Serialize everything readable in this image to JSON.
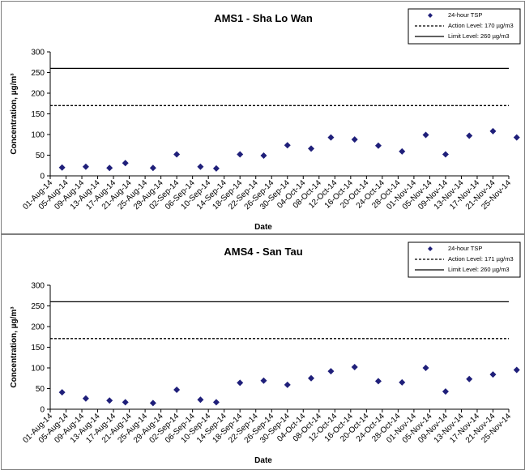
{
  "chart_data": [
    {
      "type": "scatter",
      "title": "AMS1 - Sha Lo Wan",
      "xlabel": "Date",
      "ylabel": "Concentration, µg/m³",
      "ylim": [
        0,
        300
      ],
      "yticks": [
        "0",
        "50",
        "100",
        "150",
        "200",
        "250",
        "300"
      ],
      "categories": [
        "01-Aug-14",
        "05-Aug-14",
        "09-Aug-14",
        "13-Aug-14",
        "17-Aug-14",
        "21-Aug-14",
        "25-Aug-14",
        "29-Aug-14",
        "02-Sep-14",
        "06-Sep-14",
        "10-Sep-14",
        "14-Sep-14",
        "18-Sep-14",
        "22-Sep-14",
        "26-Sep-14",
        "30-Sep-14",
        "04-Oct-14",
        "08-Oct-14",
        "12-Oct-14",
        "16-Oct-14",
        "20-Oct-14",
        "24-Oct-14",
        "28-Oct-14",
        "01-Nov-14",
        "05-Nov-14",
        "09-Nov-14",
        "13-Nov-14",
        "17-Nov-14",
        "21-Nov-14",
        "25-Nov-14"
      ],
      "series": [
        {
          "name": "24-hour TSP",
          "color": "#1f1f7a",
          "marker": "diamond",
          "x": [
            "04-Aug-14",
            "10-Aug-14",
            "16-Aug-14",
            "20-Aug-14",
            "27-Aug-14",
            "02-Sep-14",
            "08-Sep-14",
            "12-Sep-14",
            "18-Sep-14",
            "24-Sep-14",
            "30-Sep-14",
            "06-Oct-14",
            "11-Oct-14",
            "17-Oct-14",
            "23-Oct-14",
            "29-Oct-14",
            "04-Nov-14",
            "09-Nov-14",
            "15-Nov-14",
            "21-Nov-14",
            "27-Nov-14"
          ],
          "values": [
            20,
            22,
            19,
            31,
            19,
            52,
            22,
            18,
            52,
            49,
            74,
            66,
            93,
            88,
            73,
            59,
            99,
            52,
            97,
            108,
            93
          ]
        }
      ],
      "reference_lines": [
        {
          "name": "Action Level: 170 µg/m3",
          "value": 170,
          "style": "dashed"
        },
        {
          "name": "Limit Level: 260 µg/m3",
          "value": 260,
          "style": "solid"
        }
      ],
      "legend_position": "top-right",
      "grid": false
    },
    {
      "type": "scatter",
      "title": "AMS4 - San Tau",
      "xlabel": "Date",
      "ylabel": "Concentration, µg/m³",
      "ylim": [
        0,
        300
      ],
      "yticks": [
        "0",
        "50",
        "100",
        "150",
        "200",
        "250",
        "300"
      ],
      "categories": [
        "01-Aug-14",
        "05-Aug-14",
        "09-Aug-14",
        "13-Aug-14",
        "17-Aug-14",
        "21-Aug-14",
        "25-Aug-14",
        "29-Aug-14",
        "02-Sep-14",
        "06-Sep-14",
        "10-Sep-14",
        "14-Sep-14",
        "18-Sep-14",
        "22-Sep-14",
        "26-Sep-14",
        "30-Sep-14",
        "04-Oct-14",
        "08-Oct-14",
        "12-Oct-14",
        "16-Oct-14",
        "20-Oct-14",
        "24-Oct-14",
        "28-Oct-14",
        "01-Nov-14",
        "05-Nov-14",
        "09-Nov-14",
        "13-Nov-14",
        "17-Nov-14",
        "21-Nov-14",
        "25-Nov-14"
      ],
      "series": [
        {
          "name": "24-hour TSP",
          "color": "#1f1f7a",
          "marker": "diamond",
          "x": [
            "04-Aug-14",
            "10-Aug-14",
            "16-Aug-14",
            "20-Aug-14",
            "27-Aug-14",
            "02-Sep-14",
            "08-Sep-14",
            "12-Sep-14",
            "18-Sep-14",
            "24-Sep-14",
            "30-Sep-14",
            "06-Oct-14",
            "11-Oct-14",
            "17-Oct-14",
            "23-Oct-14",
            "29-Oct-14",
            "04-Nov-14",
            "09-Nov-14",
            "15-Nov-14",
            "21-Nov-14",
            "27-Nov-14"
          ],
          "values": [
            41,
            26,
            21,
            17,
            15,
            47,
            23,
            17,
            64,
            69,
            59,
            75,
            92,
            102,
            68,
            65,
            100,
            43,
            73,
            84,
            95
          ]
        }
      ],
      "reference_lines": [
        {
          "name": "Action Level: 171 µg/m3",
          "value": 171,
          "style": "dashed"
        },
        {
          "name": "Limit Level: 260 µg/m3",
          "value": 260,
          "style": "solid"
        }
      ],
      "legend_position": "top-right",
      "grid": false
    }
  ]
}
